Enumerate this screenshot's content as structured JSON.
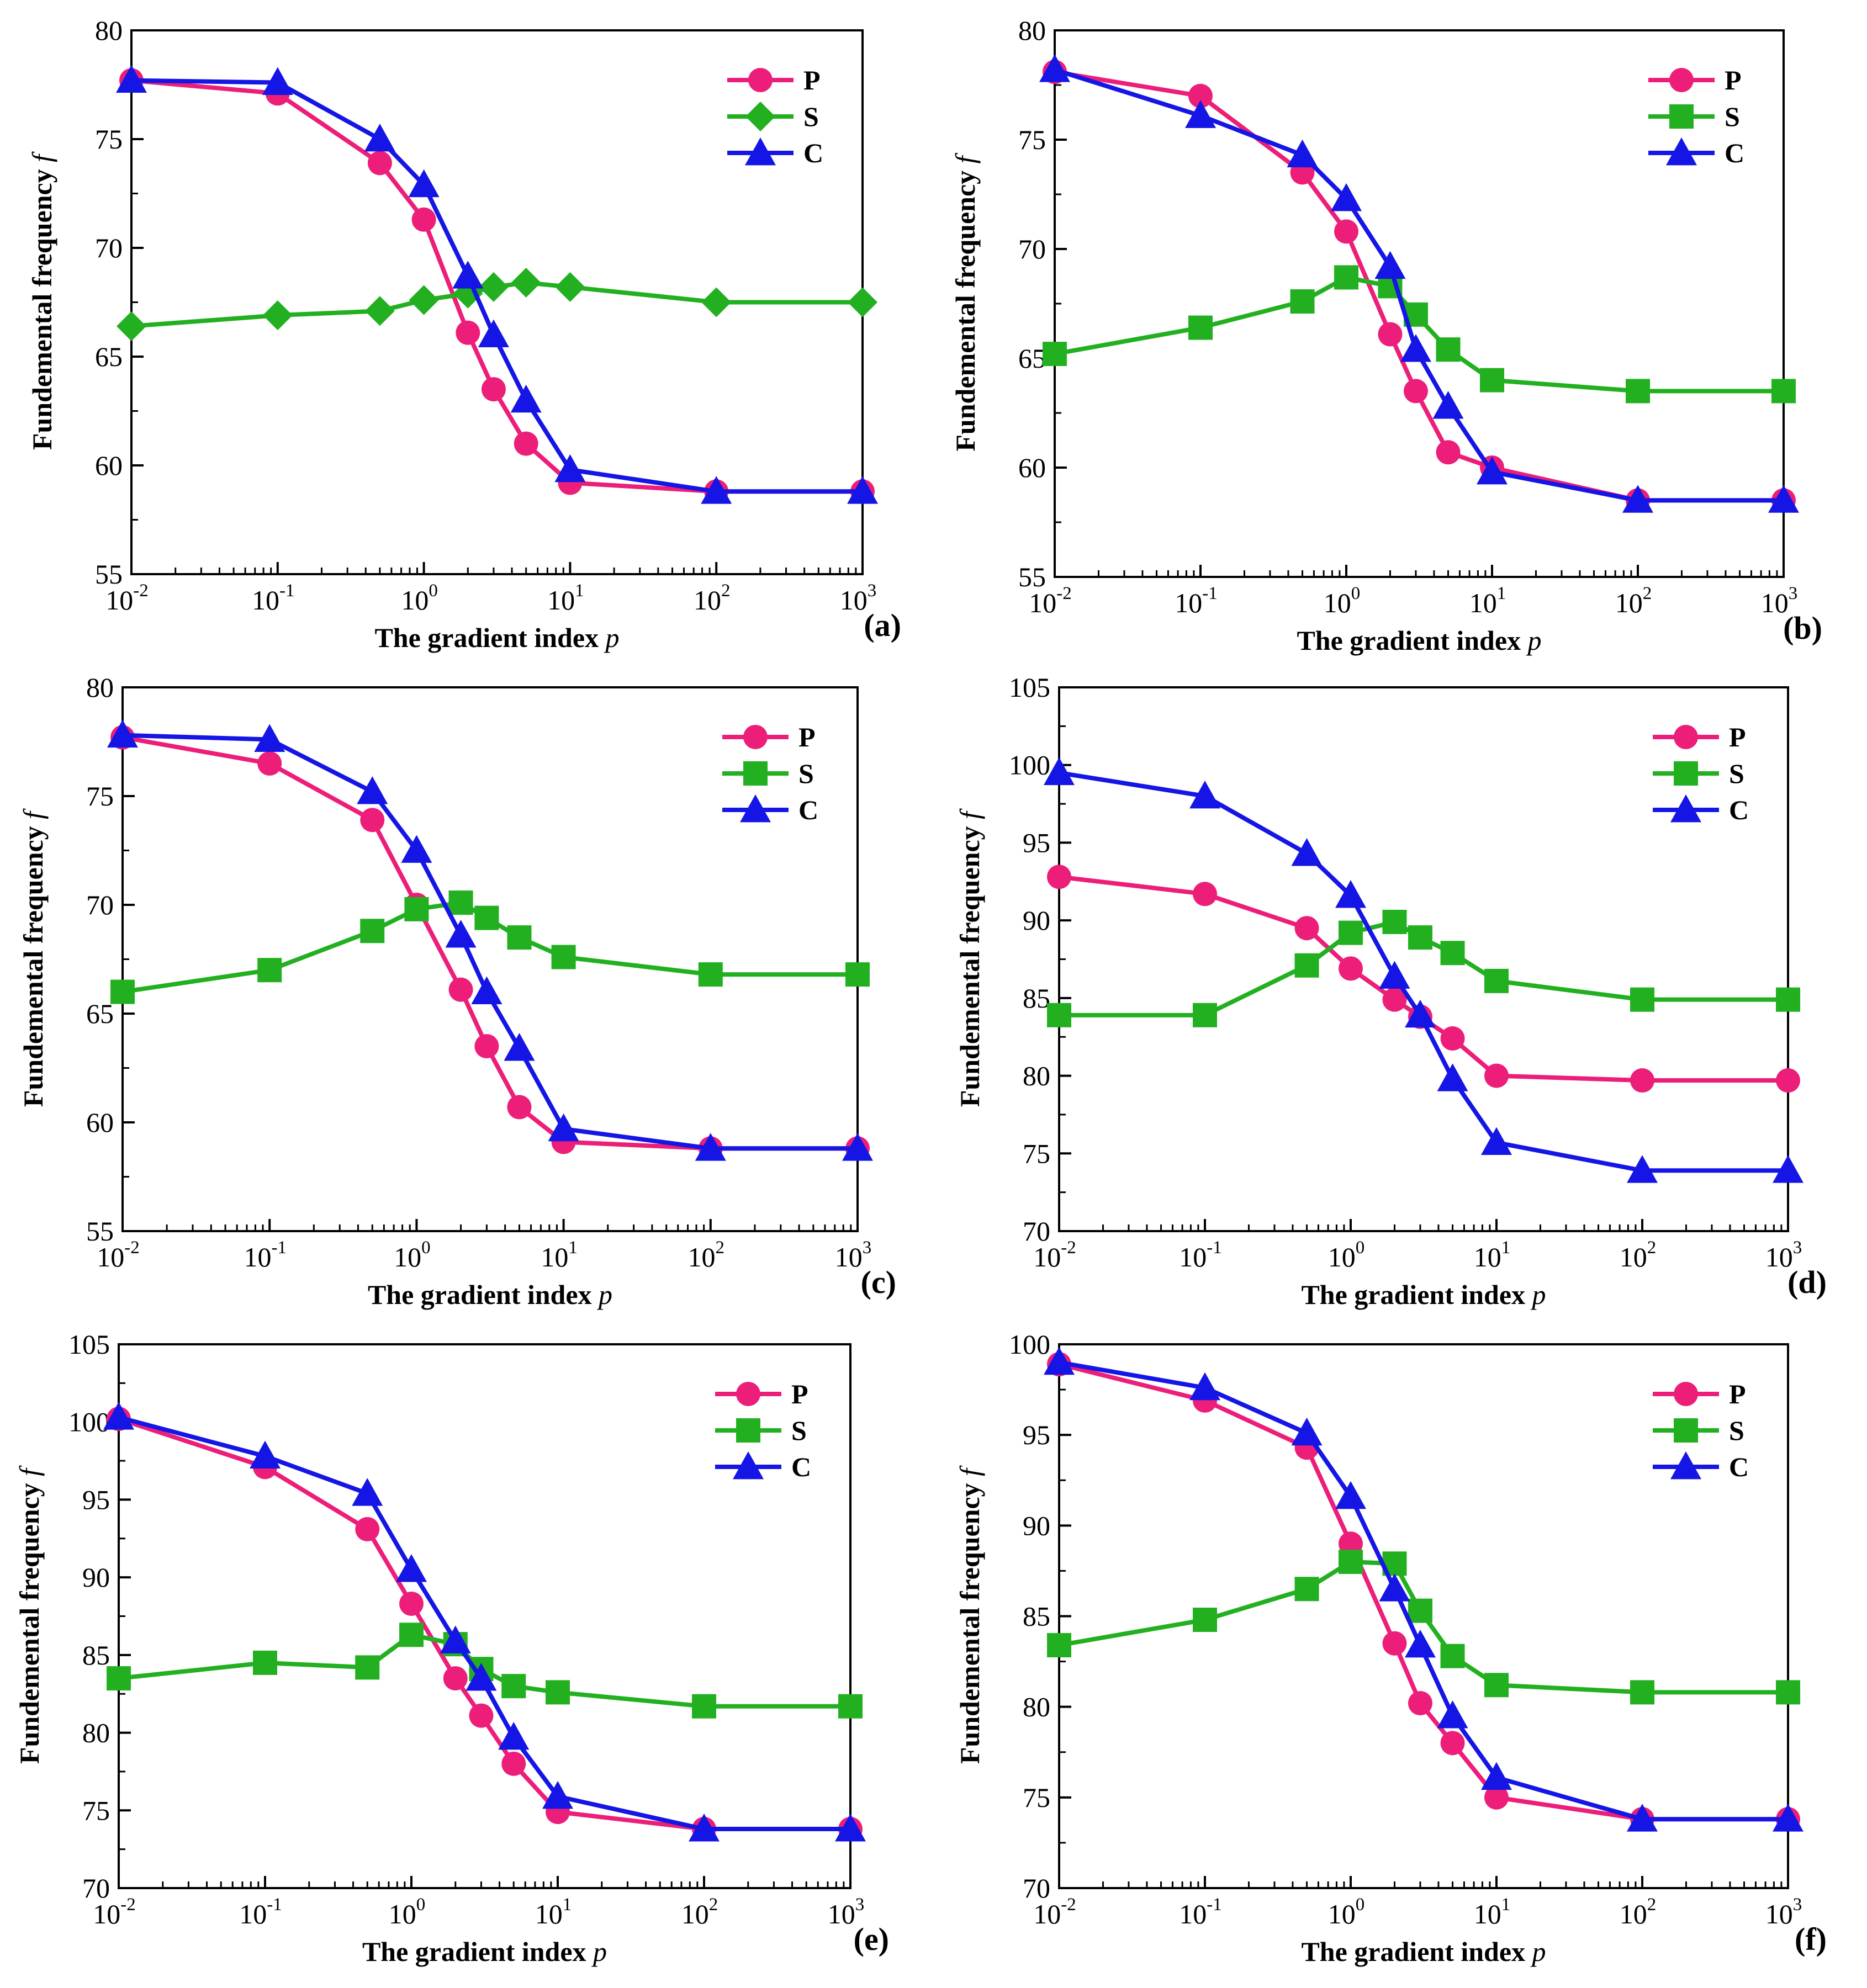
{
  "chart_data": [
    {
      "type": "line",
      "panel_label": "(a)",
      "xlabel": "The gradient index",
      "xlabel_var": "p",
      "ylabel": "Fundemental frequency",
      "ylabel_var": "f",
      "xscale": "log",
      "xlim": [
        0.01,
        1000
      ],
      "ylim": [
        55,
        80
      ],
      "yticks": [
        55,
        60,
        65,
        70,
        75,
        80
      ],
      "xtick_base": "10",
      "xtick_exps": [
        "-2",
        "-1",
        "0",
        "1",
        "2",
        "3"
      ],
      "legend_position": "top-right",
      "x": [
        0.01,
        0.1,
        0.5,
        1,
        2,
        3,
        5,
        10,
        100,
        1000
      ],
      "series": [
        {
          "name": "P",
          "color": "#ec1e79",
          "marker": "circle",
          "values": [
            77.7,
            77.1,
            73.9,
            71.3,
            66.1,
            63.5,
            61.0,
            59.2,
            58.8,
            58.8
          ]
        },
        {
          "name": "S",
          "color": "#22b020",
          "marker": "diamond",
          "values": [
            66.4,
            66.9,
            67.1,
            67.6,
            67.9,
            68.2,
            68.4,
            68.2,
            67.5,
            67.5
          ]
        },
        {
          "name": "C",
          "color": "#1515e6",
          "marker": "triangle",
          "values": [
            77.7,
            77.6,
            75.0,
            72.9,
            68.7,
            66.0,
            63.0,
            59.8,
            58.8,
            58.8
          ]
        }
      ]
    },
    {
      "type": "line",
      "panel_label": "(b)",
      "xlabel": "The gradient index",
      "xlabel_var": "p",
      "ylabel": "Fundemental frequency",
      "ylabel_var": "f",
      "xscale": "log",
      "xlim": [
        0.01,
        1000
      ],
      "ylim": [
        55,
        80
      ],
      "yticks": [
        55,
        60,
        65,
        70,
        75,
        80
      ],
      "xtick_base": "10",
      "xtick_exps": [
        "-2",
        "-1",
        "0",
        "1",
        "2",
        "3"
      ],
      "legend_position": "top-right",
      "x": [
        0.01,
        0.1,
        0.5,
        1,
        2,
        3,
        5,
        10,
        100,
        1000
      ],
      "series": [
        {
          "name": "P",
          "color": "#ec1e79",
          "marker": "circle",
          "values": [
            78.1,
            77.0,
            73.5,
            70.8,
            66.1,
            63.5,
            60.7,
            60.0,
            58.5,
            58.5
          ]
        },
        {
          "name": "S",
          "color": "#22b020",
          "marker": "square",
          "values": [
            65.2,
            66.4,
            67.6,
            68.7,
            68.3,
            67.0,
            65.4,
            64.0,
            63.5,
            63.5
          ]
        },
        {
          "name": "C",
          "color": "#1515e6",
          "marker": "triangle",
          "values": [
            78.2,
            76.1,
            74.3,
            72.3,
            69.2,
            65.4,
            62.8,
            59.8,
            58.5,
            58.5
          ]
        }
      ]
    },
    {
      "type": "line",
      "panel_label": "(c)",
      "xlabel": "The gradient index",
      "xlabel_var": "p",
      "ylabel": "Fundemental frequency",
      "ylabel_var": "f",
      "xscale": "log",
      "xlim": [
        0.01,
        1000
      ],
      "ylim": [
        55,
        80
      ],
      "yticks": [
        55,
        60,
        65,
        70,
        75,
        80
      ],
      "xtick_base": "10",
      "xtick_exps": [
        "-2",
        "-1",
        "0",
        "1",
        "2",
        "3"
      ],
      "legend_position": "top-right",
      "x": [
        0.01,
        0.1,
        0.5,
        1,
        2,
        3,
        5,
        10,
        100,
        1000
      ],
      "series": [
        {
          "name": "P",
          "color": "#ec1e79",
          "marker": "circle",
          "values": [
            77.7,
            76.5,
            73.9,
            70.0,
            66.1,
            63.5,
            60.7,
            59.1,
            58.8,
            58.8
          ]
        },
        {
          "name": "S",
          "color": "#22b020",
          "marker": "square",
          "values": [
            66.0,
            67.0,
            68.8,
            69.8,
            70.1,
            69.4,
            68.5,
            67.6,
            66.8,
            66.8
          ]
        },
        {
          "name": "C",
          "color": "#1515e6",
          "marker": "triangle",
          "values": [
            77.8,
            77.6,
            75.2,
            72.5,
            68.6,
            66.0,
            63.4,
            59.7,
            58.8,
            58.8
          ]
        }
      ]
    },
    {
      "type": "line",
      "panel_label": "(d)",
      "xlabel": "The gradient index",
      "xlabel_var": "p",
      "ylabel": "Fundemental frequency",
      "ylabel_var": "f",
      "xscale": "log",
      "xlim": [
        0.01,
        1000
      ],
      "ylim": [
        70,
        105
      ],
      "yticks": [
        70,
        75,
        80,
        85,
        90,
        95,
        100,
        105
      ],
      "xtick_base": "10",
      "xtick_exps": [
        "-2",
        "-1",
        "0",
        "1",
        "2",
        "3"
      ],
      "legend_position": "top-right",
      "x": [
        0.01,
        0.1,
        0.5,
        1,
        2,
        3,
        5,
        10,
        100,
        1000
      ],
      "series": [
        {
          "name": "P",
          "color": "#ec1e79",
          "marker": "circle",
          "values": [
            92.8,
            91.7,
            89.5,
            86.9,
            84.9,
            83.8,
            82.4,
            80.0,
            79.7,
            79.7
          ]
        },
        {
          "name": "S",
          "color": "#22b020",
          "marker": "square",
          "values": [
            83.9,
            83.9,
            87.1,
            89.2,
            89.9,
            88.9,
            87.9,
            86.1,
            84.9,
            84.9
          ]
        },
        {
          "name": "C",
          "color": "#1515e6",
          "marker": "triangle",
          "values": [
            99.5,
            98.0,
            94.3,
            91.6,
            86.4,
            83.9,
            79.8,
            75.7,
            73.9,
            73.9
          ]
        }
      ]
    },
    {
      "type": "line",
      "panel_label": "(e)",
      "xlabel": "The gradient index",
      "xlabel_var": "p",
      "ylabel": "Fundemental frequency",
      "ylabel_var": "f",
      "xscale": "log",
      "xlim": [
        0.01,
        1000
      ],
      "ylim": [
        70,
        105
      ],
      "yticks": [
        70,
        75,
        80,
        85,
        90,
        95,
        100,
        105
      ],
      "xtick_base": "10",
      "xtick_exps": [
        "-2",
        "-1",
        "0",
        "1",
        "2",
        "3"
      ],
      "legend_position": "top-right",
      "x": [
        0.01,
        0.1,
        0.5,
        1,
        2,
        3,
        5,
        10,
        100,
        1000
      ],
      "series": [
        {
          "name": "P",
          "color": "#ec1e79",
          "marker": "circle",
          "values": [
            100.2,
            97.1,
            93.1,
            88.3,
            83.5,
            81.1,
            78.0,
            74.9,
            73.8,
            73.8
          ]
        },
        {
          "name": "S",
          "color": "#22b020",
          "marker": "square",
          "values": [
            83.5,
            84.5,
            84.2,
            86.3,
            85.7,
            84.1,
            83.0,
            82.6,
            81.7,
            81.7
          ]
        },
        {
          "name": "C",
          "color": "#1515e6",
          "marker": "triangle",
          "values": [
            100.3,
            97.8,
            95.4,
            90.5,
            85.9,
            83.5,
            79.7,
            75.9,
            73.8,
            73.8
          ]
        }
      ]
    },
    {
      "type": "line",
      "panel_label": "(f)",
      "xlabel": "The gradient index",
      "xlabel_var": "p",
      "ylabel": "Fundemental frequency",
      "ylabel_var": "f",
      "xscale": "log",
      "xlim": [
        0.01,
        1000
      ],
      "ylim": [
        70,
        100
      ],
      "yticks": [
        70,
        75,
        80,
        85,
        90,
        95,
        100
      ],
      "xtick_base": "10",
      "xtick_exps": [
        "-2",
        "-1",
        "0",
        "1",
        "2",
        "3"
      ],
      "legend_position": "top-right",
      "x": [
        0.01,
        0.1,
        0.5,
        1,
        2,
        3,
        5,
        10,
        100,
        1000
      ],
      "series": [
        {
          "name": "P",
          "color": "#ec1e79",
          "marker": "circle",
          "values": [
            98.9,
            96.9,
            94.3,
            89.0,
            83.5,
            80.2,
            78.0,
            75.0,
            73.8,
            73.8
          ]
        },
        {
          "name": "S",
          "color": "#22b020",
          "marker": "square",
          "values": [
            83.4,
            84.8,
            86.5,
            88.0,
            87.9,
            85.3,
            82.8,
            81.2,
            80.8,
            80.8
          ]
        },
        {
          "name": "C",
          "color": "#1515e6",
          "marker": "triangle",
          "values": [
            99.0,
            97.6,
            95.1,
            91.6,
            86.5,
            83.4,
            79.5,
            76.1,
            73.8,
            73.8
          ]
        }
      ]
    }
  ]
}
